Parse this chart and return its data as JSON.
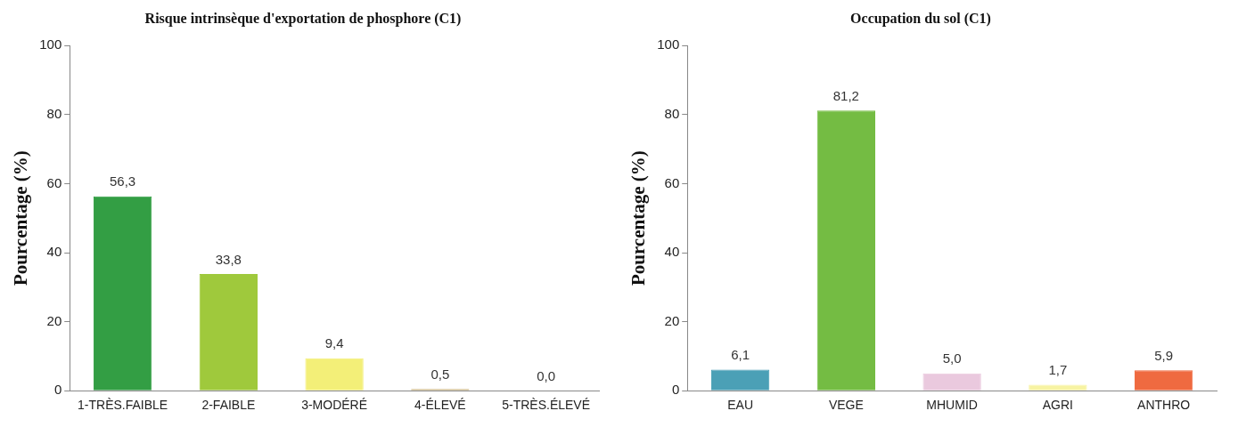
{
  "chart_data": [
    {
      "type": "bar",
      "title": "Risque intrinsèque d'exportation de phosphore (C1)",
      "ylabel": "Pourcentage (%)",
      "categories": [
        "1-TRÈS.FAIBLE",
        "2-FAIBLE",
        "3-MODÉRÉ",
        "4-ÉLEVÉ",
        "5-TRÈS.ÉLEVÉ"
      ],
      "values": [
        56.3,
        33.8,
        9.4,
        0.5,
        0.0
      ],
      "value_labels": [
        "56,3",
        "33,8",
        "9,4",
        "0,5",
        "0,0"
      ],
      "colors": [
        "#339e44",
        "#9fc93c",
        "#f3ef78",
        "#c9b27c",
        "#c0392b"
      ],
      "ylim": [
        0,
        100
      ],
      "yticks": [
        0,
        20,
        40,
        60,
        80,
        100
      ],
      "grid": false,
      "legend": false
    },
    {
      "type": "bar",
      "title": "Occupation du sol (C1)",
      "ylabel": "Pourcentage (%)",
      "categories": [
        "EAU",
        "VEGE",
        "MHUMID",
        "AGRI",
        "ANTHRO"
      ],
      "values": [
        6.1,
        81.2,
        5.0,
        1.7,
        5.9
      ],
      "value_labels": [
        "6,1",
        "81,2",
        "5,0",
        "1,7",
        "5,9"
      ],
      "colors": [
        "#4ba0b6",
        "#74bc43",
        "#eac9de",
        "#f7f3a2",
        "#ef6a40"
      ],
      "ylim": [
        0,
        100
      ],
      "yticks": [
        0,
        20,
        40,
        60,
        80,
        100
      ],
      "grid": false,
      "legend": false
    }
  ]
}
